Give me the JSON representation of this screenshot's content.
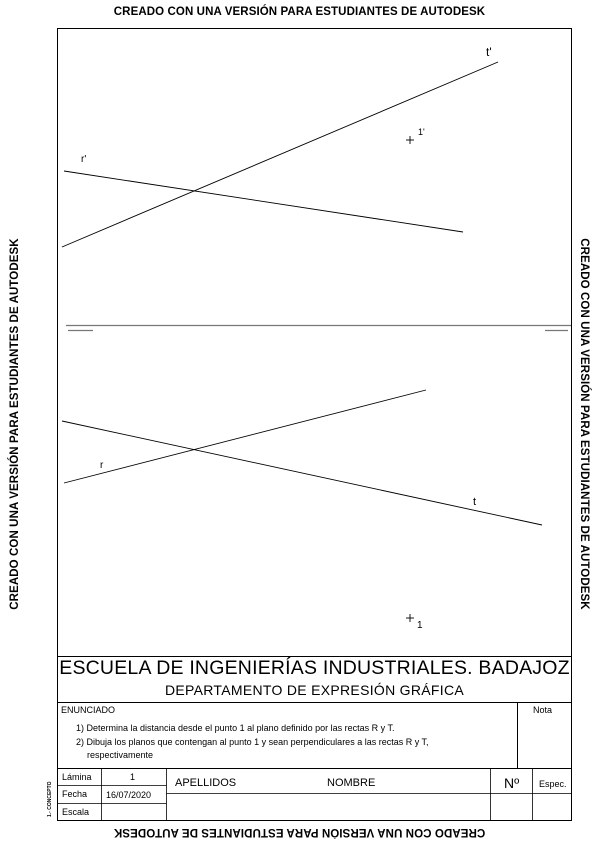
{
  "watermark": {
    "top": "CREADO CON UNA VERSIÓN PARA ESTUDIANTES DE AUTODESK",
    "bottom": "CREADO CON UNA VERSIÓN PARA ESTUDIANTES DE AUTODESK",
    "left": "CREADO CON UNA VERSIÓN PARA ESTUDIANTES DE AUTODESK",
    "right": "CREADO CON UNA VERSIÓN PARA ESTUDIANTES DE AUTODESK"
  },
  "drawing": {
    "labels": {
      "t_prime": "t'",
      "r_prime": "r'",
      "point1_prime": "1'",
      "r": "r",
      "t": "t",
      "point1": "1"
    }
  },
  "title_block": {
    "school": "ESCUELA DE INGENIERÍAS INDUSTRIALES. BADAJOZ",
    "department": "DEPARTAMENTO DE EXPRESIÓN GRÁFICA",
    "enunciado_label": "ENUNCIADO",
    "nota_label": "Nota",
    "statements": [
      "1) Determina la distancia desde el punto 1 al plano definido por las rectas R y T.",
      "2) Dibuja los planos que contengan al punto 1 y sean perpendiculares a las rectas R y T,",
      "respectivamente"
    ],
    "concepto_label": "1.- CONCEPTO",
    "lamina_label": "Lámina",
    "lamina_value": "1",
    "fecha_label": "Fecha",
    "fecha_value": "16/07/2020",
    "escala_label": "Escala",
    "escala_value": "",
    "apellidos_label": "APELLIDOS",
    "nombre_label": "NOMBRE",
    "numero_label": "Nº",
    "espec_label": "Espec."
  }
}
